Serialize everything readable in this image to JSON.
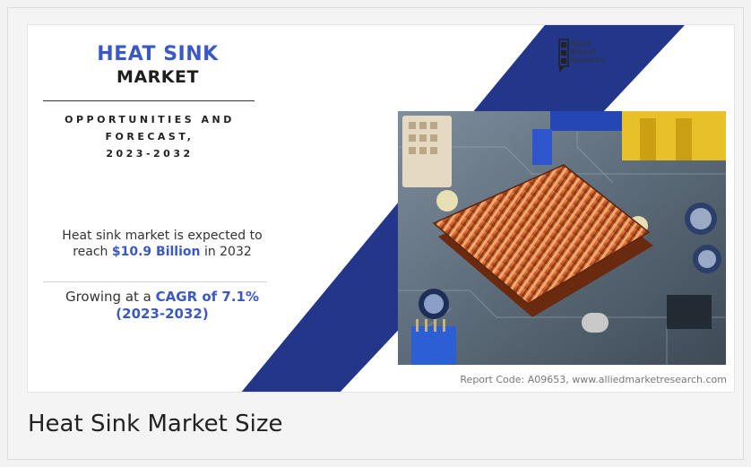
{
  "infographic": {
    "title_line1": "HEAT SINK",
    "title_line2": "MARKET",
    "subtitle_line1": "OPPORTUNITIES AND",
    "subtitle_line2": "FORECAST,",
    "subtitle_line3": "2023-2032",
    "stat1_pre": "Heat sink market is expected to",
    "stat1_reach": "reach",
    "stat1_value": "$10.9 Billion",
    "stat1_post": "in 2032",
    "stat2_pre": "Growing at a",
    "stat2_value": "CAGR of 7.1%",
    "stat2_period": "(2023-2032)",
    "logo_line1": "Allied",
    "logo_line2": "Market",
    "logo_line3": "Research",
    "report_code": "Report Code: A09653, www.alliedmarketresearch.com",
    "photo_icon": "heat-sink-photo",
    "colors": {
      "accent": "#3b59c4",
      "diagonal": "#23368a"
    }
  },
  "caption": "Heat Sink Market Size"
}
